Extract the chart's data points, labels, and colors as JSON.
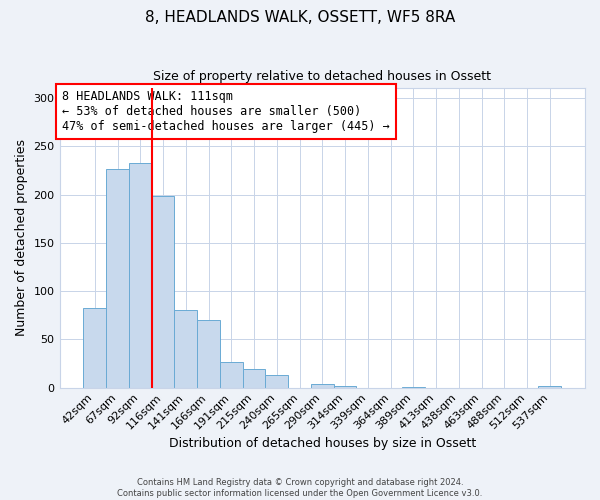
{
  "title": "8, HEADLANDS WALK, OSSETT, WF5 8RA",
  "subtitle": "Size of property relative to detached houses in Ossett",
  "xlabel": "Distribution of detached houses by size in Ossett",
  "ylabel": "Number of detached properties",
  "bar_labels": [
    "42sqm",
    "67sqm",
    "92sqm",
    "116sqm",
    "141sqm",
    "166sqm",
    "191sqm",
    "215sqm",
    "240sqm",
    "265sqm",
    "290sqm",
    "314sqm",
    "339sqm",
    "364sqm",
    "389sqm",
    "413sqm",
    "438sqm",
    "463sqm",
    "488sqm",
    "512sqm",
    "537sqm"
  ],
  "bar_values": [
    82,
    226,
    233,
    198,
    80,
    70,
    27,
    19,
    13,
    0,
    4,
    2,
    0,
    0,
    1,
    0,
    0,
    0,
    0,
    0,
    2
  ],
  "bar_color": "#c8d9ed",
  "bar_edge_color": "#6aaad4",
  "bar_width": 1.0,
  "vline_x_index": 2.5,
  "vline_color": "red",
  "ylim": [
    0,
    310
  ],
  "yticks": [
    0,
    50,
    100,
    150,
    200,
    250,
    300
  ],
  "annotation_title": "8 HEADLANDS WALK: 111sqm",
  "annotation_line1": "← 53% of detached houses are smaller (500)",
  "annotation_line2": "47% of semi-detached houses are larger (445) →",
  "annotation_box_color": "white",
  "annotation_box_edge": "red",
  "footer_line1": "Contains HM Land Registry data © Crown copyright and database right 2024.",
  "footer_line2": "Contains public sector information licensed under the Open Government Licence v3.0.",
  "background_color": "#eef2f8",
  "plot_background": "white",
  "grid_color": "#c8d4e8",
  "title_fontsize": 11,
  "subtitle_fontsize": 9,
  "axis_label_fontsize": 9,
  "tick_fontsize": 8,
  "ann_fontsize": 8.5
}
